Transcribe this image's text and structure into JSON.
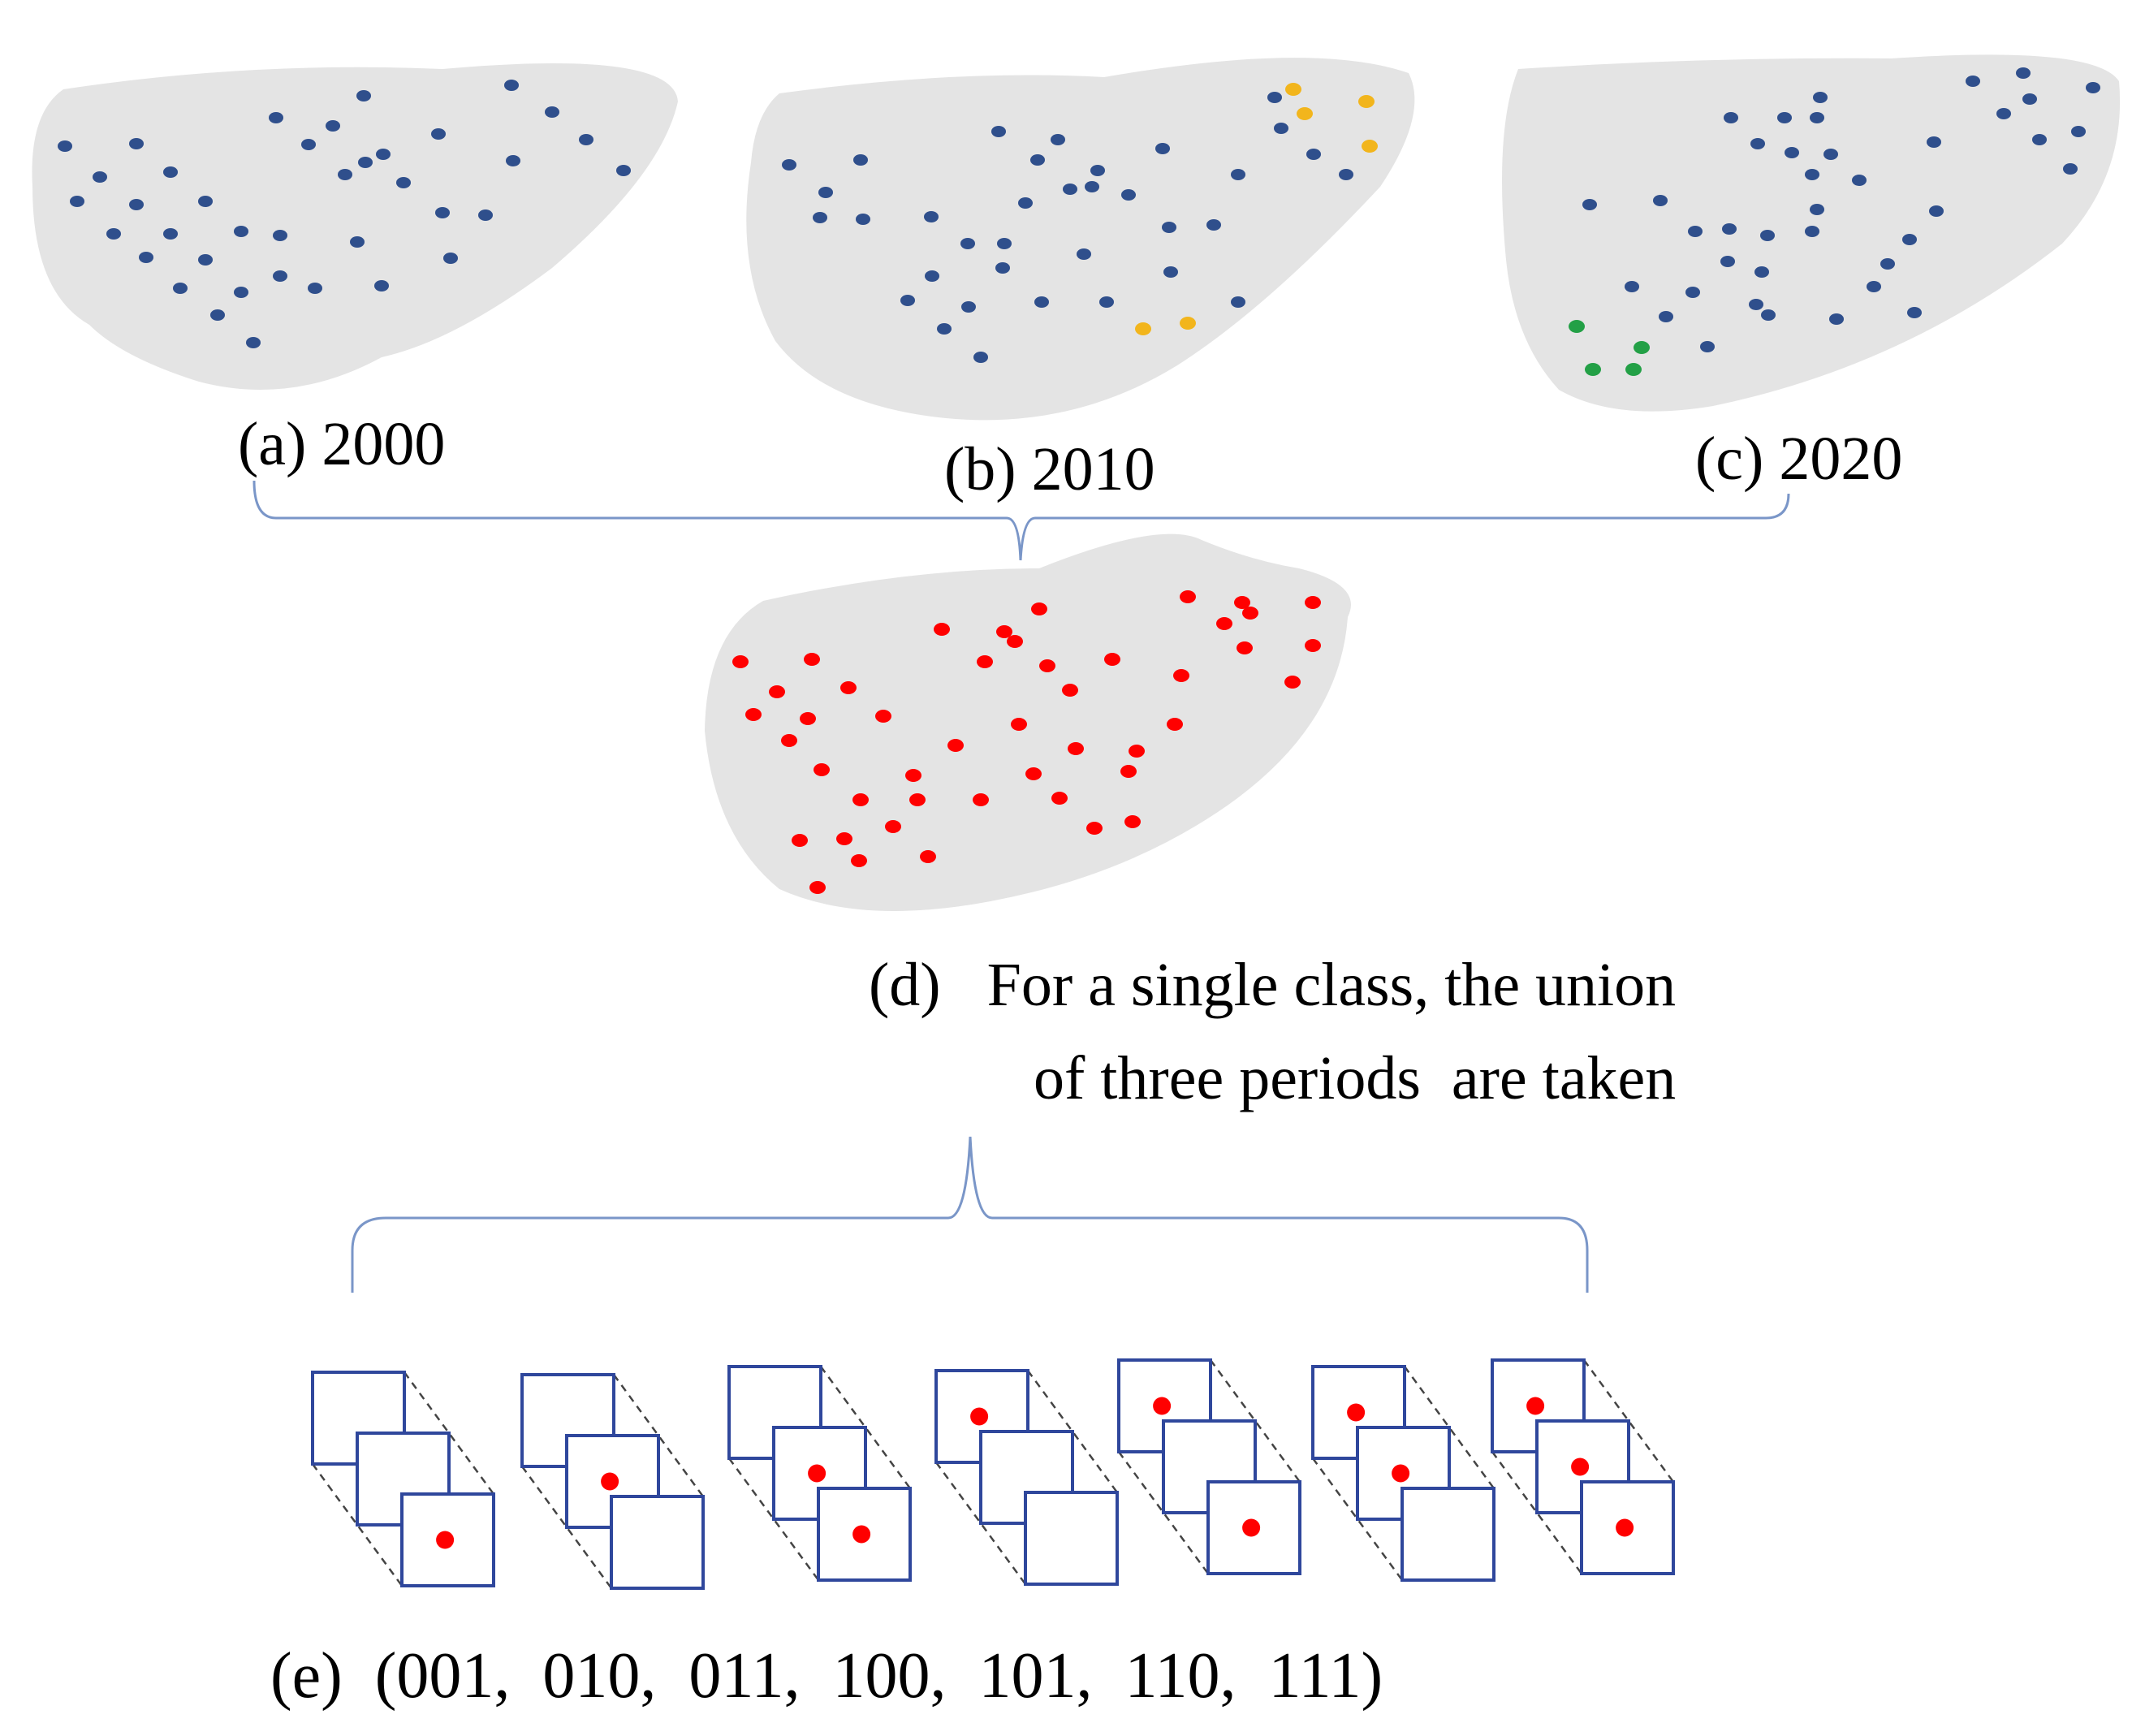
{
  "colors": {
    "blob": "#e4e4e4",
    "dot_existing": "#2f4f8c",
    "dot_2010_new": "#f2b51c",
    "dot_2020_new": "#23a046",
    "dot_union": "#ff0000",
    "bracket": "#7a96c8",
    "cube_face": "#2f479c",
    "cube_dash": "#444444"
  },
  "panels": {
    "a": {
      "label": "(a) 2000"
    },
    "b": {
      "label": "(b) 2010"
    },
    "c": {
      "label": "(c) 2020"
    },
    "d": {
      "line1": "(d)   For a single class, the union",
      "line2": "of three periods  are taken"
    },
    "e": {
      "label": "(e)  (001,  010,  011,  100,  101,  110,  111)"
    }
  },
  "codes": [
    "001",
    "010",
    "011",
    "100",
    "101",
    "110",
    "111"
  ]
}
